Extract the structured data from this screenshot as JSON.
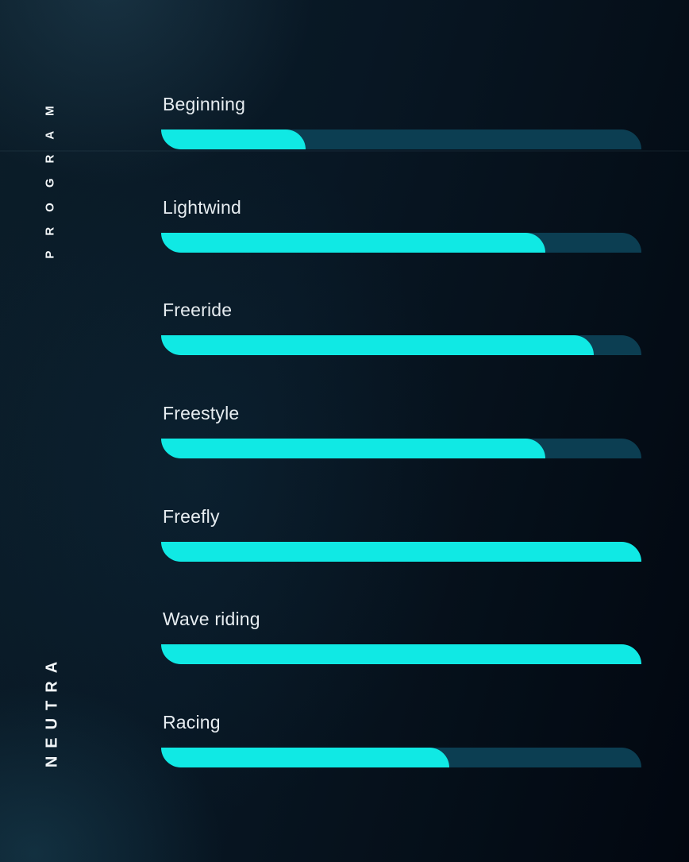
{
  "sidebar": {
    "program_heading": "PROGRAM",
    "brand_name": "NEUTRA"
  },
  "chart_data": {
    "type": "bar",
    "orientation": "horizontal",
    "title": "PROGRAM",
    "series_name": "NEUTRA",
    "categories": [
      "Beginning",
      "Lightwind",
      "Freeride",
      "Freestyle",
      "Freefly",
      "Wave riding",
      "Racing"
    ],
    "values": [
      30,
      80,
      90,
      80,
      100,
      100,
      60
    ],
    "value_unit": "percent",
    "value_range": [
      0,
      100
    ],
    "grid": false,
    "legend_position": "none",
    "bar_color": "#10e9e4",
    "track_color": "#0c3e52",
    "label_color": "#e7edf1",
    "background_color": "#071624"
  }
}
